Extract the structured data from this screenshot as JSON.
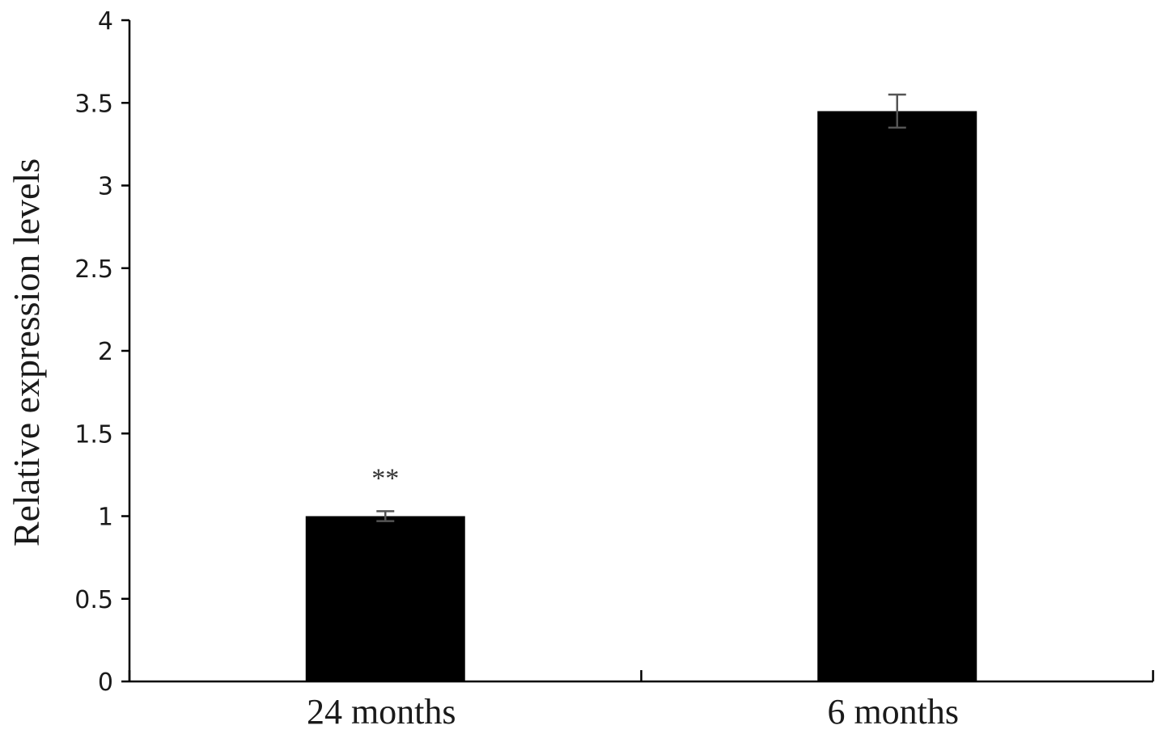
{
  "chart_data": {
    "type": "bar",
    "categories": [
      "24 months",
      "6 months"
    ],
    "values": [
      1.0,
      3.45
    ],
    "error": [
      0.03,
      0.1
    ],
    "annotations": [
      "**",
      ""
    ],
    "xlabel": "",
    "ylabel": "Relative expression levels",
    "ylim": [
      0,
      4
    ],
    "yticks": [
      0,
      0.5,
      1,
      1.5,
      2,
      2.5,
      3,
      3.5,
      4
    ],
    "ytick_labels": [
      "0",
      "0.5",
      "1",
      "1.5",
      "2",
      "2.5",
      "3",
      "3.5",
      "4"
    ],
    "grid": false,
    "colors": {
      "bar": "#000000",
      "error_bar": "#555555",
      "axis": "#000000"
    }
  }
}
